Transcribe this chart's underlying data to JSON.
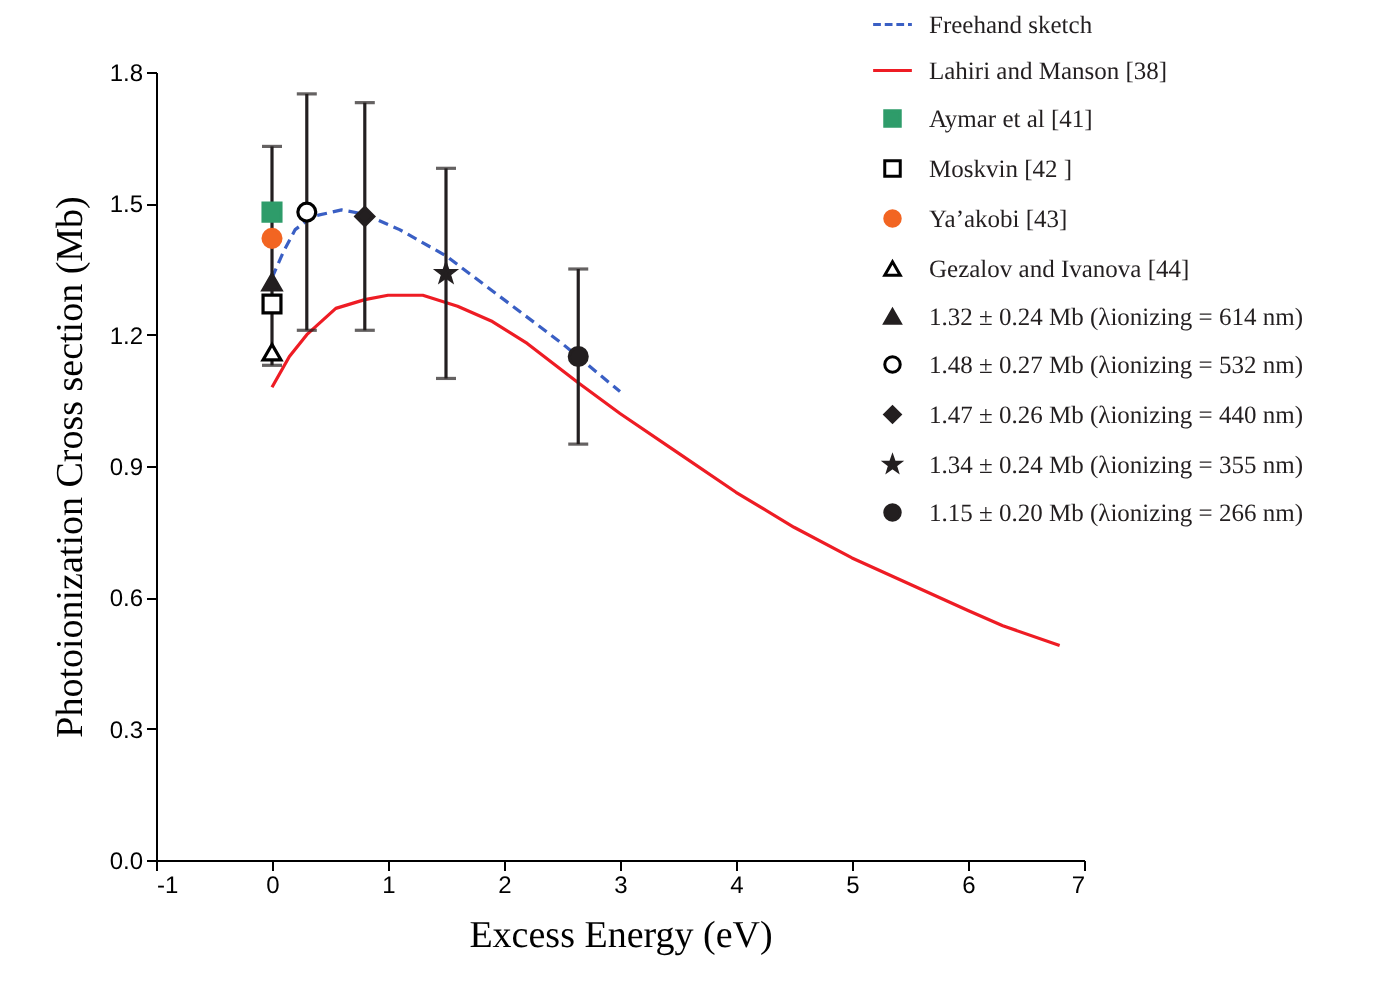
{
  "chart_data": {
    "type": "line",
    "xlabel": "Excess Energy (eV)",
    "ylabel": "Photoionization Cross section (Mb)",
    "xlim": [
      -1,
      7
    ],
    "xticks": [
      -1,
      0,
      1,
      2,
      3,
      4,
      5,
      6,
      7
    ],
    "ylim": [
      0,
      1.8
    ],
    "yticks": [
      {
        "value": 0,
        "label": "0.0"
      },
      0.3,
      0.6,
      0.9,
      1.2,
      1.5,
      1.8
    ],
    "grid": false,
    "legend": "top right",
    "series": [
      {
        "name": "Freehand sketch",
        "line_style": "dashed",
        "color": "#3a5fc4",
        "x": [
          0,
          0.1,
          0.2,
          0.35,
          0.6,
          0.8,
          1.1,
          1.5,
          2.0,
          2.5,
          3.0
        ],
        "values": [
          1.33,
          1.39,
          1.44,
          1.47,
          1.485,
          1.475,
          1.44,
          1.38,
          1.28,
          1.18,
          1.07
        ]
      },
      {
        "name": "Lahiri and Manson [38]",
        "line_style": "solid",
        "color": "#ee1c24",
        "x": [
          0,
          0.15,
          0.3,
          0.55,
          0.8,
          1.0,
          1.3,
          1.6,
          1.9,
          2.2,
          2.64,
          3.0,
          3.5,
          4.0,
          4.5,
          5.0,
          5.5,
          6.0,
          6.3,
          6.79
        ],
        "values": [
          1.08,
          1.15,
          1.2,
          1.26,
          1.28,
          1.29,
          1.29,
          1.265,
          1.23,
          1.18,
          1.09,
          1.02,
          0.93,
          0.84,
          0.76,
          0.69,
          0.63,
          0.57,
          0.535,
          0.49
        ]
      },
      {
        "name": "Aymar et al [41]",
        "type": "scatter",
        "marker": "square",
        "color": "#2e9c6a",
        "x": [
          0
        ],
        "values": [
          1.48
        ]
      },
      {
        "name": "Moskvin [42 ]",
        "type": "scatter",
        "marker": "square",
        "color": "#ffffff",
        "x": [
          0
        ],
        "values": [
          1.27
        ]
      },
      {
        "name": "Ya’akobi [43]",
        "type": "scatter",
        "marker": "circle",
        "color": "#f26522",
        "x": [
          0
        ],
        "values": [
          1.42
        ]
      },
      {
        "name": "Gezalov and Ivanova [44]",
        "type": "scatter",
        "marker": "triangle",
        "color": "#ffffff",
        "x": [
          0
        ],
        "values": [
          1.16
        ]
      },
      {
        "name": "1.32  ±  0.24 Mb (λionizing = 614 nm)",
        "type": "scatter",
        "marker": "triangle",
        "color": "#231f20",
        "x": [
          0
        ],
        "values": [
          1.32
        ],
        "errors": [
          [
            1.13,
            1.63
          ]
        ]
      },
      {
        "name": "1.48  ±  0.27 Mb (λionizing = 532 nm)",
        "type": "scatter",
        "marker": "circle",
        "color": "#ffffff",
        "x": [
          0.3
        ],
        "values": [
          1.48
        ],
        "errors": [
          0.27
        ]
      },
      {
        "name": "1.47  ±  0.26 Mb (λionizing = 440 nm)",
        "type": "scatter",
        "marker": "diamond",
        "color": "#231f20",
        "x": [
          0.8
        ],
        "values": [
          1.47
        ],
        "errors": [
          0.26
        ]
      },
      {
        "name": "1.34  ±  0.24 Mb (λionizing = 355 nm)",
        "type": "scatter",
        "marker": "star",
        "color": "#231f20",
        "x": [
          1.5
        ],
        "values": [
          1.34
        ],
        "errors": [
          0.24
        ]
      },
      {
        "name": "1.15  ±  0.20 Mb (λionizing = 266 nm)",
        "type": "scatter",
        "marker": "circle",
        "color": "#231f20",
        "x": [
          2.64
        ],
        "values": [
          1.15
        ],
        "errors": [
          0.2
        ]
      }
    ]
  }
}
